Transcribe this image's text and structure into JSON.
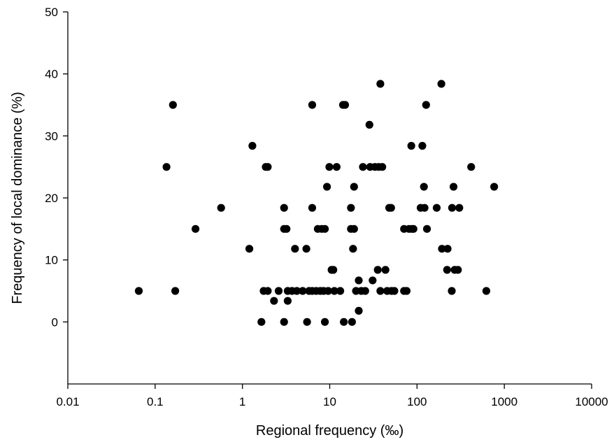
{
  "chart_data": {
    "type": "scatter",
    "xlabel": "Regional frequency (‰)",
    "ylabel": "Frequency of local dominance (%)",
    "x_scale": "log",
    "xlim": [
      0.01,
      10000
    ],
    "ylim": [
      -10,
      50
    ],
    "x_ticks": [
      0.01,
      0.1,
      1,
      10,
      100,
      1000,
      10000
    ],
    "x_tick_labels": [
      "0.01",
      "0.1",
      "1",
      "10",
      "100",
      "1000",
      "10000"
    ],
    "y_ticks": [
      0,
      10,
      20,
      30,
      40,
      50
    ],
    "y_tick_labels": [
      "0",
      "10",
      "20",
      "30",
      "40",
      "50"
    ],
    "grid": false,
    "marker_color": "#000000",
    "points": [
      [
        0.065,
        5
      ],
      [
        0.135,
        25
      ],
      [
        0.16,
        35
      ],
      [
        0.17,
        5
      ],
      [
        0.29,
        15
      ],
      [
        0.57,
        18.4
      ],
      [
        1.2,
        11.8
      ],
      [
        1.3,
        28.4
      ],
      [
        1.65,
        0
      ],
      [
        1.75,
        5
      ],
      [
        1.85,
        25
      ],
      [
        1.95,
        25
      ],
      [
        1.95,
        5
      ],
      [
        2.3,
        3.4
      ],
      [
        2.6,
        5
      ],
      [
        3.0,
        15
      ],
      [
        3.0,
        18.4
      ],
      [
        3.0,
        0
      ],
      [
        3.2,
        15
      ],
      [
        3.3,
        3.4
      ],
      [
        3.3,
        5
      ],
      [
        3.7,
        5
      ],
      [
        4.0,
        11.8
      ],
      [
        4.2,
        5
      ],
      [
        4.9,
        5
      ],
      [
        5.4,
        11.8
      ],
      [
        5.5,
        0
      ],
      [
        5.8,
        5
      ],
      [
        6.3,
        35
      ],
      [
        6.3,
        18.4
      ],
      [
        6.3,
        5
      ],
      [
        7.0,
        5
      ],
      [
        7.3,
        15
      ],
      [
        7.8,
        5
      ],
      [
        8.1,
        15
      ],
      [
        8.5,
        5
      ],
      [
        8.8,
        15
      ],
      [
        8.8,
        0
      ],
      [
        9.3,
        21.8
      ],
      [
        9.6,
        5
      ],
      [
        9.9,
        25
      ],
      [
        10.5,
        8.4
      ],
      [
        11.0,
        8.4
      ],
      [
        11.3,
        5
      ],
      [
        12.0,
        25
      ],
      [
        13.2,
        5
      ],
      [
        14.2,
        35
      ],
      [
        14.5,
        0
      ],
      [
        15.0,
        35
      ],
      [
        17.5,
        18.4
      ],
      [
        17.5,
        15
      ],
      [
        18.0,
        0
      ],
      [
        18.5,
        11.8
      ],
      [
        19.0,
        15
      ],
      [
        19.0,
        21.8
      ],
      [
        20.0,
        5
      ],
      [
        21.5,
        6.7
      ],
      [
        21.5,
        1.8
      ],
      [
        23.0,
        5
      ],
      [
        24.0,
        25
      ],
      [
        25.5,
        5
      ],
      [
        28.5,
        31.8
      ],
      [
        29.0,
        25
      ],
      [
        31.0,
        6.7
      ],
      [
        33.0,
        25
      ],
      [
        35.5,
        8.4
      ],
      [
        36.5,
        25
      ],
      [
        38.0,
        38.4
      ],
      [
        38.0,
        5
      ],
      [
        40.0,
        25
      ],
      [
        43.5,
        8.4
      ],
      [
        45.5,
        5
      ],
      [
        48.0,
        18.4
      ],
      [
        50.5,
        18.4
      ],
      [
        51.0,
        5
      ],
      [
        55.0,
        5
      ],
      [
        71.0,
        15
      ],
      [
        71.0,
        5
      ],
      [
        76.0,
        5
      ],
      [
        81.0,
        15
      ],
      [
        86.0,
        28.4
      ],
      [
        87.0,
        15
      ],
      [
        91.0,
        15
      ],
      [
        110.0,
        18.4
      ],
      [
        115.0,
        28.4
      ],
      [
        120.0,
        21.8
      ],
      [
        122.0,
        18.4
      ],
      [
        127.0,
        35
      ],
      [
        130.0,
        15
      ],
      [
        168.0,
        18.4
      ],
      [
        190.0,
        38.4
      ],
      [
        193.0,
        11.8
      ],
      [
        221.0,
        8.4
      ],
      [
        224.0,
        11.8
      ],
      [
        250.0,
        5
      ],
      [
        252.0,
        18.4
      ],
      [
        262.0,
        21.8
      ],
      [
        270.0,
        8.4
      ],
      [
        294.0,
        8.4
      ],
      [
        305.0,
        18.4
      ],
      [
        417.0,
        25
      ],
      [
        622.0,
        5
      ],
      [
        765.0,
        21.8
      ]
    ]
  }
}
